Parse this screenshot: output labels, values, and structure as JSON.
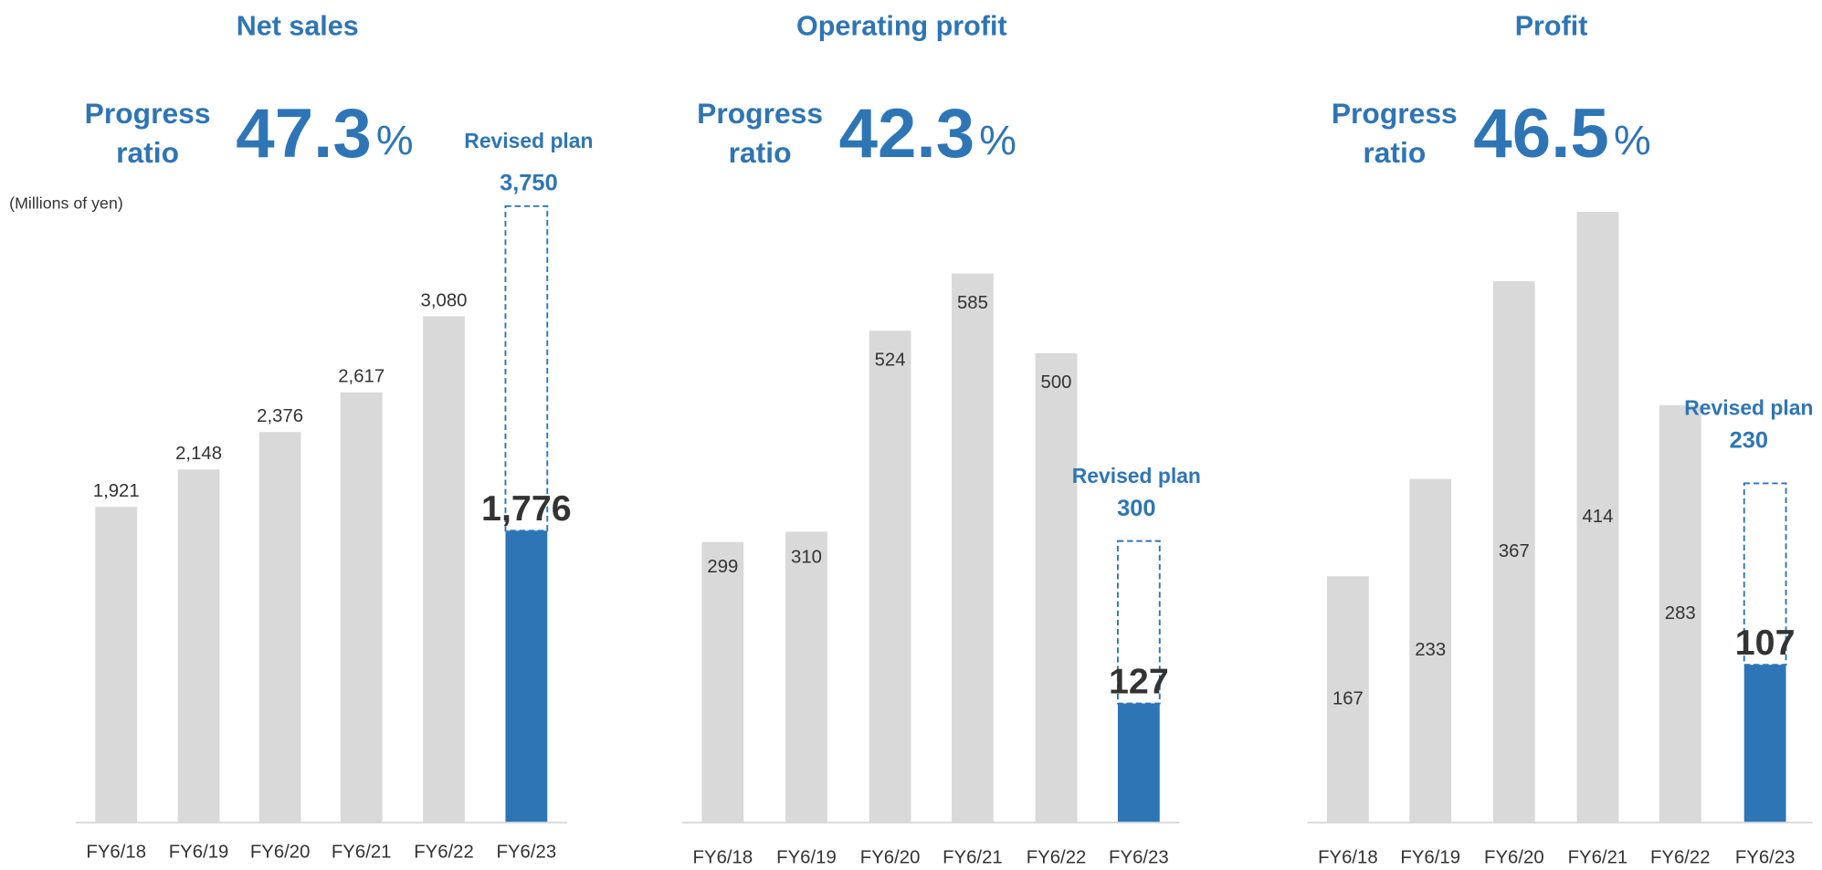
{
  "chart_data": [
    {
      "type": "bar",
      "title": "Net sales",
      "progress_label": [
        "Progress",
        "ratio"
      ],
      "progress_ratio": 47.3,
      "progress_unit": "%",
      "unit_label": "(Millions of yen)",
      "plan_label": "Revised plan",
      "plan_value": 3750,
      "plan_value_label": "3,750",
      "categories": [
        "FY6/18",
        "FY6/19",
        "FY6/20",
        "FY6/21",
        "FY6/22",
        "FY6/23"
      ],
      "values": [
        1921,
        2148,
        2376,
        2617,
        3080,
        1776
      ],
      "value_labels": [
        "1,921",
        "2,148",
        "2,376",
        "2,617",
        "3,080",
        "1,776"
      ],
      "ylim": [
        0,
        4020
      ],
      "color": "#d9d9d9",
      "highlight_color": "#2e75b6"
    },
    {
      "type": "bar",
      "title": "Operating profit",
      "progress_label": [
        "Progress",
        "ratio"
      ],
      "progress_ratio": 42.3,
      "progress_unit": "%",
      "plan_label": "Revised plan",
      "plan_value": 300,
      "categories": [
        "FY6/18",
        "FY6/19",
        "FY6/20",
        "FY6/21",
        "FY6/22",
        "FY6/23"
      ],
      "values": [
        299,
        310,
        524,
        585,
        500,
        127
      ],
      "ylim": [
        0,
        704
      ],
      "color": "#d9d9d9",
      "highlight_color": "#2e75b6"
    },
    {
      "type": "bar",
      "title": "Profit",
      "progress_label": [
        "Progress",
        "ratio"
      ],
      "progress_ratio": 46.5,
      "progress_unit": "%",
      "plan_label": "Revised plan",
      "plan_value": 230,
      "categories": [
        "FY6/18",
        "FY6/19",
        "FY6/20",
        "FY6/21",
        "FY6/22",
        "FY6/23"
      ],
      "values": [
        167,
        233,
        367,
        414,
        283,
        107
      ],
      "ylim": [
        0,
        448
      ],
      "color": "#d9d9d9",
      "highlight_color": "#2e75b6"
    }
  ]
}
